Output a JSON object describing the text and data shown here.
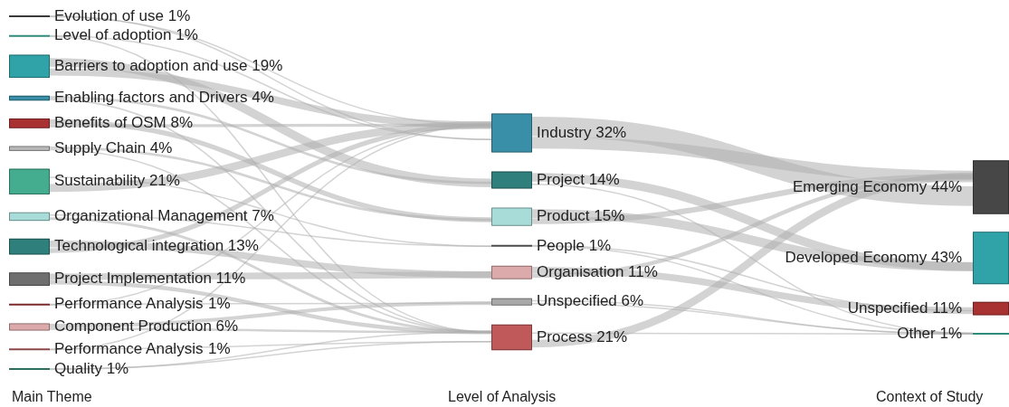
{
  "chart_data": [
    {
      "type": "other",
      "xlabel": "Main Theme",
      "categories": [
        "Evolution of use",
        "Level of adoption",
        "Barriers to adoption and use",
        "Enabling factors and Drivers",
        "Benefits of OSM",
        "Supply Chain",
        "Sustainability",
        "Organizational Management",
        "Technological integration",
        "Project Implementation",
        "Performance Analysis",
        "Component Production",
        "Performance Analysis",
        "Quality"
      ],
      "values": [
        1,
        1,
        19,
        4,
        8,
        4,
        21,
        7,
        13,
        11,
        1,
        6,
        1,
        1
      ],
      "value_labels": [
        "1%",
        "1%",
        "19%",
        "4%",
        "8%",
        "4%",
        "21%",
        "7%",
        "13%",
        "11%",
        "1%",
        "6%",
        "1%",
        "1%"
      ],
      "colors": [
        "#3a3a3a",
        "#2e8b7a",
        "#2fa3a8",
        "#3a8fa8",
        "#a83232",
        "#b8b8b8",
        "#45ad8f",
        "#a8dcd8",
        "#2f7f7c",
        "#6e6e6e",
        "#7a2a2a",
        "#dcaaaa",
        "#8a4a4a",
        "#2e6e5e"
      ]
    },
    {
      "type": "other",
      "xlabel": "Level of Analysis",
      "categories": [
        "Industry",
        "Project",
        "Product",
        "People",
        "Organisation",
        "Unspecified",
        "Process"
      ],
      "values": [
        32,
        14,
        15,
        1,
        11,
        6,
        21
      ],
      "value_labels": [
        "32%",
        "14%",
        "15%",
        "1%",
        "11%",
        "6%",
        "21%"
      ],
      "colors": [
        "#3a8fa8",
        "#2f7f7c",
        "#a8dcd8",
        "#4a4a4a",
        "#dcaaaa",
        "#a8a8a8",
        "#c05a5a"
      ]
    },
    {
      "type": "other",
      "xlabel": "Context of Study",
      "categories": [
        "Emerging Economy",
        "Developed Economy",
        "Unspecified",
        "Other"
      ],
      "values": [
        44,
        43,
        11,
        1
      ],
      "value_labels": [
        "44%",
        "43%",
        "11%",
        "1%"
      ],
      "colors": [
        "#474747",
        "#2fa3a8",
        "#a83232",
        "#2e8b7a"
      ]
    }
  ]
}
